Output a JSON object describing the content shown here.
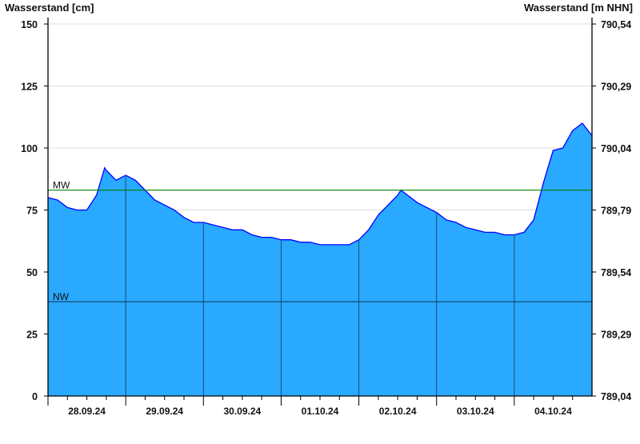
{
  "chart_data": {
    "type": "area",
    "ylabel_left": "Wasserstand [cm]",
    "ylabel_right": "Wasserstand [m NHN]",
    "ylim": [
      0,
      150
    ],
    "yticks_left": [
      0,
      25,
      50,
      75,
      100,
      125,
      150
    ],
    "yticks_right": [
      "789,04",
      "789,29",
      "789,54",
      "789,79",
      "790,04",
      "790,29",
      "790,54"
    ],
    "xlim": [
      "2024-09-28T00:00",
      "2024-10-05T00:00"
    ],
    "x_tick_labels": [
      "28.09.24",
      "29.09.24",
      "30.09.24",
      "01.10.24",
      "02.10.24",
      "03.10.24",
      "04.10.24"
    ],
    "grid": true,
    "reference_lines": [
      {
        "label": "MW",
        "value": 83,
        "color": "#008000"
      },
      {
        "label": "NW",
        "value": 38,
        "color": "#1a3d66"
      }
    ],
    "colors": {
      "fill": "#29A9FF",
      "line": "#0000FF",
      "grid": "#dddddd",
      "day_lines": "#1a4a70"
    },
    "series": [
      {
        "points": [
          [
            "2024-09-28T00:00",
            80
          ],
          [
            "2024-09-28T03:00",
            79
          ],
          [
            "2024-09-28T06:00",
            76
          ],
          [
            "2024-09-28T09:00",
            75
          ],
          [
            "2024-09-28T12:00",
            75
          ],
          [
            "2024-09-28T15:00",
            81
          ],
          [
            "2024-09-28T17:30",
            92
          ],
          [
            "2024-09-28T18:00",
            91
          ],
          [
            "2024-09-28T21:00",
            87
          ],
          [
            "2024-09-29T00:00",
            89
          ],
          [
            "2024-09-29T03:00",
            87
          ],
          [
            "2024-09-29T06:00",
            83
          ],
          [
            "2024-09-29T09:00",
            79
          ],
          [
            "2024-09-29T12:00",
            77
          ],
          [
            "2024-09-29T15:00",
            75
          ],
          [
            "2024-09-29T18:00",
            72
          ],
          [
            "2024-09-29T21:00",
            70
          ],
          [
            "2024-09-30T00:00",
            70
          ],
          [
            "2024-09-30T03:00",
            69
          ],
          [
            "2024-09-30T06:00",
            68
          ],
          [
            "2024-09-30T09:00",
            67
          ],
          [
            "2024-09-30T12:00",
            67
          ],
          [
            "2024-09-30T15:00",
            65
          ],
          [
            "2024-09-30T18:00",
            64
          ],
          [
            "2024-09-30T21:00",
            64
          ],
          [
            "2024-10-01T00:00",
            63
          ],
          [
            "2024-10-01T03:00",
            63
          ],
          [
            "2024-10-01T06:00",
            62
          ],
          [
            "2024-10-01T09:00",
            62
          ],
          [
            "2024-10-01T12:00",
            61
          ],
          [
            "2024-10-01T15:00",
            61
          ],
          [
            "2024-10-01T18:00",
            61
          ],
          [
            "2024-10-01T21:00",
            61
          ],
          [
            "2024-10-02T00:00",
            63
          ],
          [
            "2024-10-02T03:00",
            67
          ],
          [
            "2024-10-02T06:00",
            73
          ],
          [
            "2024-10-02T09:00",
            77
          ],
          [
            "2024-10-02T12:00",
            81
          ],
          [
            "2024-10-02T13:00",
            83
          ],
          [
            "2024-10-02T15:00",
            81
          ],
          [
            "2024-10-02T18:00",
            78
          ],
          [
            "2024-10-02T21:00",
            76
          ],
          [
            "2024-10-03T00:00",
            74
          ],
          [
            "2024-10-03T03:00",
            71
          ],
          [
            "2024-10-03T06:00",
            70
          ],
          [
            "2024-10-03T09:00",
            68
          ],
          [
            "2024-10-03T12:00",
            67
          ],
          [
            "2024-10-03T15:00",
            66
          ],
          [
            "2024-10-03T18:00",
            66
          ],
          [
            "2024-10-03T21:00",
            65
          ],
          [
            "2024-10-04T00:00",
            65
          ],
          [
            "2024-10-04T03:00",
            66
          ],
          [
            "2024-10-04T06:00",
            71
          ],
          [
            "2024-10-04T09:00",
            86
          ],
          [
            "2024-10-04T12:00",
            99
          ],
          [
            "2024-10-04T15:00",
            100
          ],
          [
            "2024-10-04T18:00",
            107
          ],
          [
            "2024-10-04T21:00",
            110
          ],
          [
            "2024-10-05T00:00",
            105
          ]
        ]
      }
    ]
  }
}
